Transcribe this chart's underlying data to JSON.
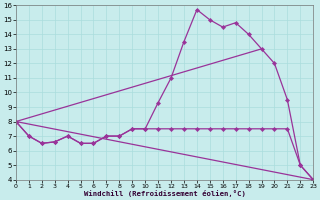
{
  "xlabel": "Windchill (Refroidissement éolien,°C)",
  "background_color": "#c8ecec",
  "line_color": "#993399",
  "grid_color": "#aadddd",
  "xlim": [
    0,
    23
  ],
  "ylim": [
    4,
    16
  ],
  "yticks": [
    4,
    5,
    6,
    7,
    8,
    9,
    10,
    11,
    12,
    13,
    14,
    15,
    16
  ],
  "xticks": [
    0,
    1,
    2,
    3,
    4,
    5,
    6,
    7,
    8,
    9,
    10,
    11,
    12,
    13,
    14,
    15,
    16,
    17,
    18,
    19,
    20,
    21,
    22,
    23
  ],
  "line1_x": [
    0,
    1,
    2,
    3,
    4,
    5,
    6,
    7,
    8,
    9,
    10,
    11,
    12,
    13,
    14,
    15,
    16,
    17,
    18,
    19,
    20,
    21,
    22,
    23
  ],
  "line1_y": [
    8.0,
    7.0,
    6.5,
    6.6,
    7.0,
    6.5,
    6.5,
    7.0,
    7.0,
    7.5,
    7.5,
    9.3,
    11.0,
    13.5,
    15.7,
    15.0,
    14.5,
    14.8,
    14.0,
    13.0,
    12.0,
    9.5,
    5.0,
    4.0
  ],
  "line2_x": [
    0,
    1,
    2,
    3,
    4,
    5,
    6,
    7,
    8,
    9,
    10,
    11,
    12,
    13,
    14,
    15,
    16,
    17,
    18,
    19,
    20,
    21,
    22,
    23
  ],
  "line2_y": [
    8.0,
    7.0,
    6.5,
    6.6,
    7.0,
    6.5,
    6.5,
    7.0,
    7.0,
    7.5,
    7.5,
    7.5,
    7.5,
    7.5,
    7.5,
    7.5,
    7.5,
    7.5,
    7.5,
    7.5,
    7.5,
    7.5,
    5.0,
    4.0
  ],
  "line3_x": [
    0,
    23
  ],
  "line3_y": [
    8.0,
    4.0
  ],
  "line4_x": [
    0,
    19
  ],
  "line4_y": [
    8.0,
    13.0
  ]
}
